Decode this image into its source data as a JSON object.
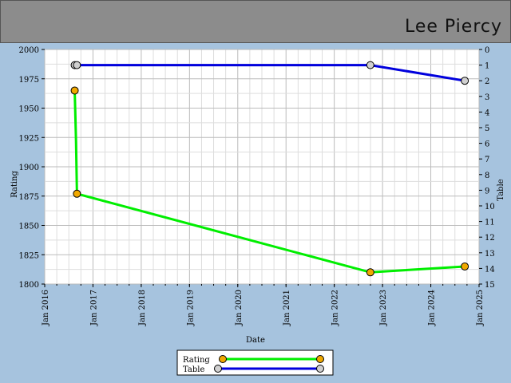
{
  "header": {
    "player_name": "Lee Piercy"
  },
  "chart_data": {
    "type": "line",
    "xlabel": "Date",
    "ylabel": "Rating",
    "y2label": "Table",
    "ylim": [
      1800,
      2000
    ],
    "y2lim": [
      0,
      15
    ],
    "y2_inverted": true,
    "xlim": [
      "2016-01-01",
      "2025-01-01"
    ],
    "x_ticks": [
      "Jan 2016",
      "Jan 2017",
      "Jan 2018",
      "Jan 2019",
      "Jan 2020",
      "Jan 2021",
      "Jan 2022",
      "Jan 2023",
      "Jan 2024",
      "Jan 2025"
    ],
    "y_ticks": [
      1800,
      1825,
      1850,
      1875,
      1900,
      1925,
      1950,
      1975,
      2000
    ],
    "y2_ticks": [
      0,
      1,
      2,
      3,
      4,
      5,
      6,
      7,
      8,
      9,
      10,
      11,
      12,
      13,
      14,
      15
    ],
    "grid": true,
    "legend_position": "bottom-center",
    "series": [
      {
        "name": "Rating",
        "axis": "left",
        "color": "#00ee00",
        "marker_color": "#f0a800",
        "points": [
          {
            "x": "2016-08-15",
            "y": 1965,
            "marker": true
          },
          {
            "x": "2016-08-25",
            "y": 1922,
            "marker": false
          },
          {
            "x": "2016-09-01",
            "y": 1877,
            "marker": true
          },
          {
            "x": "2022-10-01",
            "y": 1810,
            "marker": true
          },
          {
            "x": "2024-09-15",
            "y": 1815,
            "marker": true
          }
        ]
      },
      {
        "name": "Table",
        "axis": "right",
        "color": "#0000dd",
        "marker_color": "#d0d0d0",
        "points": [
          {
            "x": "2016-08-15",
            "y": 1,
            "marker": true
          },
          {
            "x": "2016-09-01",
            "y": 1,
            "marker": true
          },
          {
            "x": "2022-10-01",
            "y": 1,
            "marker": true
          },
          {
            "x": "2024-09-15",
            "y": 2,
            "marker": true
          }
        ]
      }
    ]
  }
}
